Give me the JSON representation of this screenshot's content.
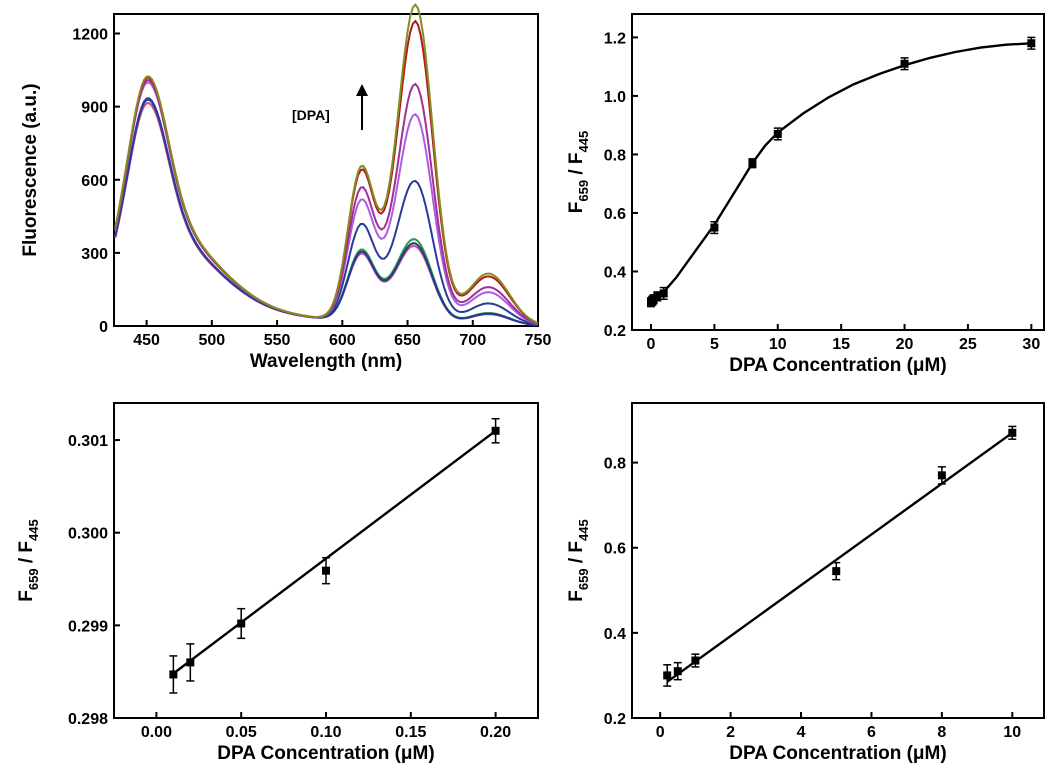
{
  "chart_data": [
    {
      "id": "a",
      "type": "line",
      "xlabel": "Wavelength (nm)",
      "ylabel": "Fluorescence (a.u.)",
      "xlim": [
        425,
        750
      ],
      "ylim": [
        0,
        1280
      ],
      "xticks": [
        450,
        500,
        550,
        600,
        650,
        700,
        750
      ],
      "yticks": [
        0,
        300,
        600,
        900,
        1200
      ],
      "annotation": "[DPA]",
      "series_note": "emission spectra at increasing DPA concentration",
      "series": [
        {
          "color": "#d04a8a",
          "p1": 915,
          "p2": 255,
          "p3": 270
        },
        {
          "color": "#2f9a3a",
          "p1": 930,
          "p2": 270,
          "p3": 295
        },
        {
          "color": "#1a3a9a",
          "p1": 935,
          "p2": 262,
          "p3": 280
        },
        {
          "color": "#2a3a9a",
          "p1": 930,
          "p2": 365,
          "p3": 515
        },
        {
          "color": "#b05ce0",
          "p1": 1000,
          "p2": 455,
          "p3": 770
        },
        {
          "color": "#a0309a",
          "p1": 1010,
          "p2": 500,
          "p3": 885
        },
        {
          "color": "#b01a20",
          "p1": 1020,
          "p2": 565,
          "p3": 1130
        },
        {
          "color": "#8a8a20",
          "p1": 1025,
          "p2": 578,
          "p3": 1195
        }
      ]
    },
    {
      "id": "b",
      "type": "scatter",
      "xlabel": "DPA Concentration (μM)",
      "ylabel_main": "F",
      "ylabel_sub1": "659",
      "ylabel_mid": " / F",
      "ylabel_sub2": "445",
      "xlim": [
        -1.5,
        31
      ],
      "ylim": [
        0.2,
        1.28
      ],
      "xticks": [
        0,
        5,
        10,
        15,
        20,
        25,
        30
      ],
      "yticks": [
        0.2,
        0.4,
        0.6,
        0.8,
        1.0,
        1.2
      ],
      "ytick_labels": [
        "0.2",
        "0.4",
        "0.6",
        "0.8",
        "1.0",
        "1.2"
      ],
      "points": [
        {
          "x": 0,
          "y": 0.295,
          "err": 0.015
        },
        {
          "x": 0.1,
          "y": 0.3,
          "err": 0.015
        },
        {
          "x": 0.2,
          "y": 0.305,
          "err": 0.015
        },
        {
          "x": 0.5,
          "y": 0.315,
          "err": 0.015
        },
        {
          "x": 1,
          "y": 0.325,
          "err": 0.02
        },
        {
          "x": 5,
          "y": 0.55,
          "err": 0.02
        },
        {
          "x": 8,
          "y": 0.77,
          "err": 0.015
        },
        {
          "x": 10,
          "y": 0.87,
          "err": 0.02
        },
        {
          "x": 20,
          "y": 1.11,
          "err": 0.02
        },
        {
          "x": 30,
          "y": 1.18,
          "err": 0.02
        }
      ],
      "fit": {
        "x": [
          0,
          1,
          2,
          3,
          4,
          5,
          6,
          7,
          8,
          9,
          10,
          12,
          14,
          16,
          18,
          20,
          22,
          24,
          26,
          28,
          30
        ],
        "y": [
          0.295,
          0.33,
          0.38,
          0.44,
          0.5,
          0.56,
          0.63,
          0.7,
          0.77,
          0.83,
          0.875,
          0.94,
          0.995,
          1.04,
          1.075,
          1.105,
          1.13,
          1.15,
          1.165,
          1.175,
          1.18
        ]
      }
    },
    {
      "id": "c",
      "type": "scatter",
      "xlabel": "DPA Concentration (μM)",
      "ylabel_main": "F",
      "ylabel_sub1": "659",
      "ylabel_mid": " / F",
      "ylabel_sub2": "445",
      "xlim": [
        -0.025,
        0.225
      ],
      "ylim": [
        0.298,
        0.3014
      ],
      "xticks": [
        0.0,
        0.05,
        0.1,
        0.15,
        0.2
      ],
      "xtick_labels": [
        "0.00",
        "0.05",
        "0.10",
        "0.15",
        "0.20"
      ],
      "yticks": [
        0.298,
        0.299,
        0.3,
        0.301
      ],
      "ytick_labels": [
        "0.298",
        "0.299",
        "0.300",
        "0.301"
      ],
      "points": [
        {
          "x": 0.01,
          "y": 0.29847,
          "err": 0.0002
        },
        {
          "x": 0.02,
          "y": 0.2986,
          "err": 0.0002
        },
        {
          "x": 0.05,
          "y": 0.29902,
          "err": 0.00016
        },
        {
          "x": 0.1,
          "y": 0.29959,
          "err": 0.00014
        },
        {
          "x": 0.2,
          "y": 0.3011,
          "err": 0.00013
        }
      ],
      "fit": {
        "x": [
          0.01,
          0.2
        ],
        "y": [
          0.29848,
          0.3011
        ]
      }
    },
    {
      "id": "d",
      "type": "scatter",
      "xlabel": "DPA Concentration (μM)",
      "ylabel_main": "F",
      "ylabel_sub1": "659",
      "ylabel_mid": " / F",
      "ylabel_sub2": "445",
      "xlim": [
        -0.8,
        10.9
      ],
      "ylim": [
        0.2,
        0.94
      ],
      "xticks": [
        0,
        2,
        4,
        6,
        8,
        10
      ],
      "yticks": [
        0.2,
        0.4,
        0.6,
        0.8
      ],
      "ytick_labels": [
        "0.2",
        "0.4",
        "0.6",
        "0.8"
      ],
      "points": [
        {
          "x": 0.2,
          "y": 0.3,
          "err": 0.025
        },
        {
          "x": 0.5,
          "y": 0.31,
          "err": 0.02
        },
        {
          "x": 1,
          "y": 0.335,
          "err": 0.015
        },
        {
          "x": 5,
          "y": 0.545,
          "err": 0.02
        },
        {
          "x": 8,
          "y": 0.77,
          "err": 0.02
        },
        {
          "x": 10,
          "y": 0.87,
          "err": 0.015
        }
      ],
      "fit": {
        "x": [
          0.2,
          10
        ],
        "y": [
          0.285,
          0.87
        ]
      }
    }
  ]
}
